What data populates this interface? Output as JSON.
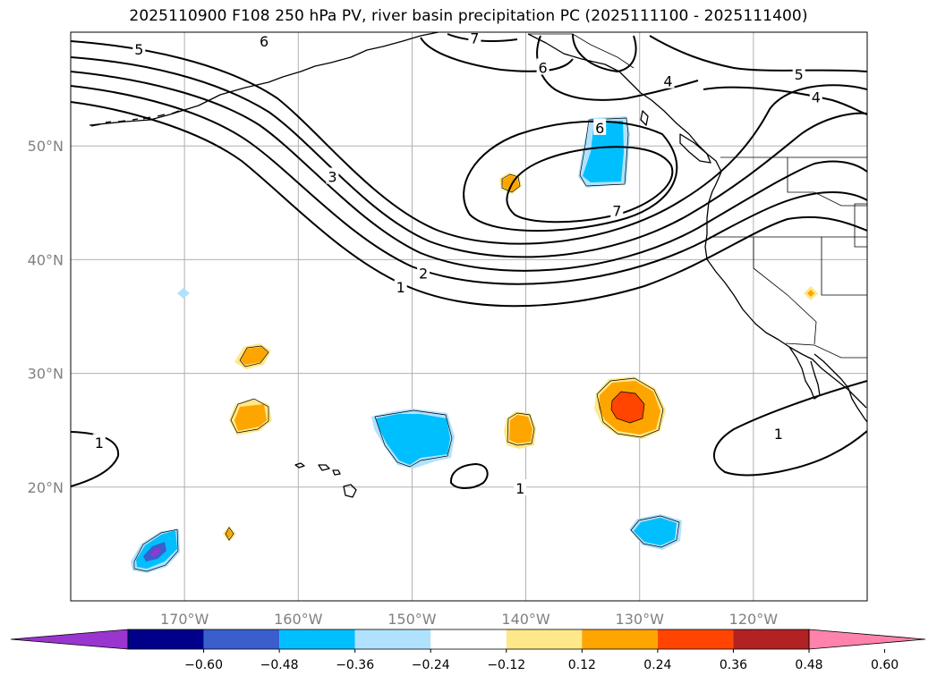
{
  "title": "2025110900 F108 250 hPa PV, river basin precipitation PC (2025111100 - 2025111400)",
  "colors": {
    "bin_colors": [
      "#9a35d0",
      "#00008b",
      "#3a5fcd",
      "#00bfff",
      "#b0e2ff",
      "#ffffff",
      "#ffe88a",
      "#ffa500",
      "#ff4500",
      "#b22222",
      "#ff82ab"
    ],
    "contour": "#000000",
    "grid": "#b0b0b0",
    "tick_label": "#808080"
  },
  "map": {
    "lon_range": [
      -180,
      -110
    ],
    "lat_range": [
      10,
      60
    ],
    "lat_ticks": [
      {
        "value": 50,
        "label": "50°N"
      },
      {
        "value": 40,
        "label": "40°N"
      },
      {
        "value": 30,
        "label": "30°N"
      },
      {
        "value": 20,
        "label": "20°N"
      }
    ],
    "lon_ticks": [
      {
        "value": -170,
        "label": "170°W"
      },
      {
        "value": -160,
        "label": "160°W"
      },
      {
        "value": -150,
        "label": "150°W"
      },
      {
        "value": -140,
        "label": "140°W"
      },
      {
        "value": -130,
        "label": "130°W"
      },
      {
        "value": -120,
        "label": "120°W"
      }
    ],
    "contour_labels": [
      {
        "text": "5",
        "lon": -174,
        "lat": 58.5
      },
      {
        "text": "3",
        "lon": -157,
        "lat": 47.3
      },
      {
        "text": "2",
        "lon": -149,
        "lat": 38.8
      },
      {
        "text": "1",
        "lon": -151,
        "lat": 37.6
      },
      {
        "text": "7",
        "lon": -144.5,
        "lat": 59.5
      },
      {
        "text": "6",
        "lon": -138.5,
        "lat": 56.9
      },
      {
        "text": "6",
        "lon": -163,
        "lat": 59.2
      },
      {
        "text": "4",
        "lon": -127.5,
        "lat": 55.7
      },
      {
        "text": "5",
        "lon": -116,
        "lat": 56.3
      },
      {
        "text": "4",
        "lon": -114.5,
        "lat": 54.3
      },
      {
        "text": "6",
        "lon": -133.5,
        "lat": 51.6
      },
      {
        "text": "7",
        "lon": -132,
        "lat": 44.3
      },
      {
        "text": "1",
        "lon": -177.5,
        "lat": 23.9
      },
      {
        "text": "1",
        "lon": -140.5,
        "lat": 19.9
      },
      {
        "text": "1",
        "lon": -117.8,
        "lat": 24.7
      }
    ],
    "contour_values_shown": [
      1,
      2,
      3,
      4,
      5,
      6,
      7
    ]
  },
  "colorbar": {
    "ticks": [
      "−0.60",
      "−0.48",
      "−0.36",
      "−0.24",
      "−0.12",
      "0.12",
      "0.24",
      "0.36",
      "0.48",
      "0.60"
    ]
  }
}
